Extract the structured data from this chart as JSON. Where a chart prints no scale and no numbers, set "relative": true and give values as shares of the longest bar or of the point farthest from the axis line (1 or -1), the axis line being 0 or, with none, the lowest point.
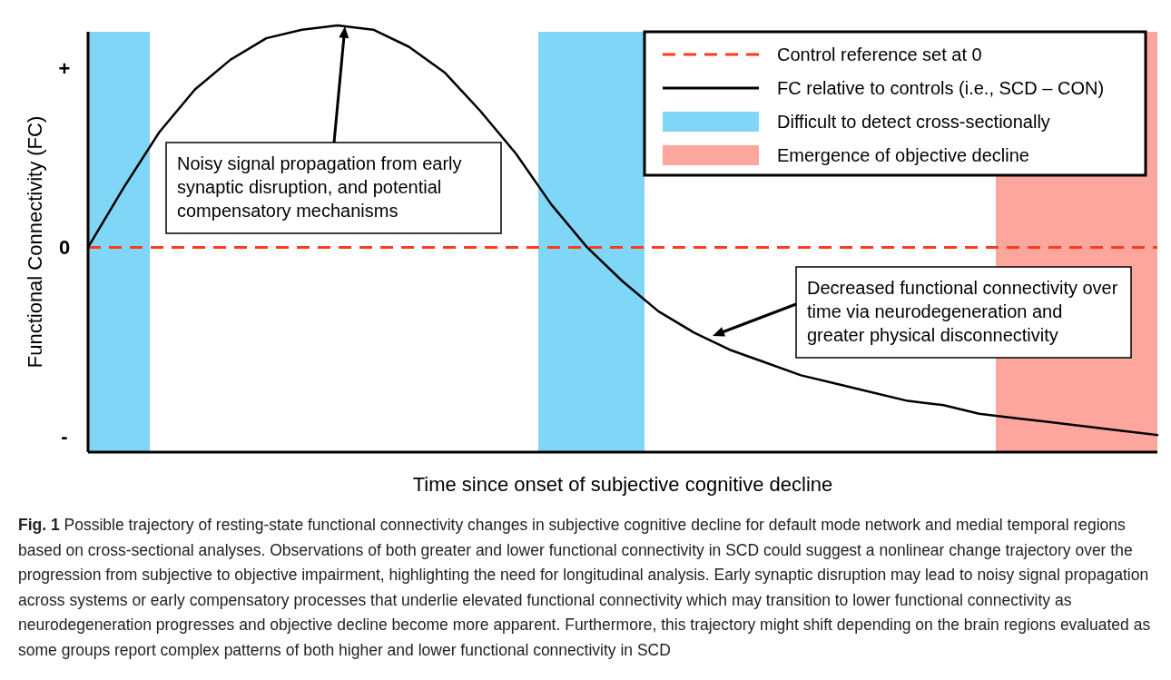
{
  "chart_data": {
    "type": "line",
    "xlabel": "Time since onset of subjective cognitive decline",
    "ylabel": "Functional Connectivity (FC)",
    "relative": true,
    "legend": "top right",
    "marker": "none",
    "line_style": "solid",
    "categories": [
      null,
      null,
      null,
      null,
      null,
      null,
      null,
      null,
      null,
      null,
      null,
      null,
      null,
      null,
      null,
      null,
      null,
      null,
      null,
      null,
      null,
      null,
      null,
      null,
      null,
      null,
      null,
      null,
      null,
      null,
      null
    ],
    "series": [
      {
        "name": "FC relative to controls (i.e., SCD – CON)",
        "color": "#000000",
        "values": [
          0.48,
          0.62,
          0.75,
          0.85,
          0.92,
          0.97,
          0.99,
          1,
          0.99,
          0.95,
          0.89,
          0.8,
          0.7,
          0.58,
          0.48,
          0.4,
          0.33,
          0.28,
          0.24,
          0.21,
          0.18,
          0.16,
          0.14,
          0.12,
          0.11,
          0.09,
          0.08,
          0.07,
          0.06,
          0.05,
          0.04
        ]
      }
    ],
    "ref_lines": [
      {
        "axis": "y",
        "value": 0.48,
        "label": "Control reference set at 0",
        "color": "#ff3b1f",
        "line_style": "dashed"
      }
    ],
    "annotations": [
      "+",
      "0",
      "-",
      "Difficult to detect cross-sectionally",
      "Emergence of objective decline",
      "Noisy signal propagation from early synaptic disruption, and potential compensatory mechanisms",
      "Decreased functional connectivity over time via neurodegeneration and greater physical disconnectivity",
      "Fig. 1 Possible trajectory of resting-state functional connectivity changes in subjective cognitive decline for default mode network and medial temporal regions based on cross-sectional analyses. Observations of both greater and lower functional connectivity in SCD could suggest a nonlinear change trajectory over the progression from subjective to objective impairment, highlighting the need for longitudinal analysis. Early synaptic disruption may lead to noisy signal propagation across systems or early compensatory processes that underlie elevated functional connectivity which may transition to lower functional connectivity as neurodegeneration progresses and objective decline become more apparent. Furthermore, this trajectory might shift depending on the brain regions evaluated as some groups report complex patterns of both higher and lower functional connectivity in SCD"
    ]
  }
}
